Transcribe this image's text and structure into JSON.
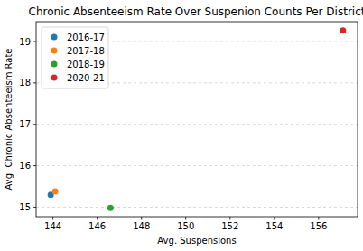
{
  "chart_data": {
    "type": "scatter",
    "title": "Chronic Absenteeism Rate Over Suspenion Counts Per District",
    "x_label": "Avg. Suspensions",
    "y_label": "Avg. Chronic Absenteeism Rate",
    "series": [
      {
        "name": "2016-17",
        "color": "#1f77b4",
        "x": [
          143.9
        ],
        "values": [
          15.3
        ]
      },
      {
        "name": "2017-18",
        "color": "#ff7f0e",
        "x": [
          144.1
        ],
        "values": [
          15.38
        ]
      },
      {
        "name": "2018-19",
        "color": "#2ca02c",
        "x": [
          146.6
        ],
        "values": [
          14.98
        ]
      },
      {
        "name": "2020-21",
        "color": "#d62728",
        "x": [
          157.1
        ],
        "values": [
          19.27
        ]
      }
    ],
    "xlim": [
      143.24,
      157.76
    ],
    "ylim": [
      14.77,
      19.48
    ],
    "xticks": [
      144,
      146,
      148,
      150,
      152,
      154,
      156
    ],
    "yticks": [
      15,
      16,
      17,
      18,
      19
    ],
    "grid": "y",
    "legend": "upper left",
    "marker": "o"
  }
}
